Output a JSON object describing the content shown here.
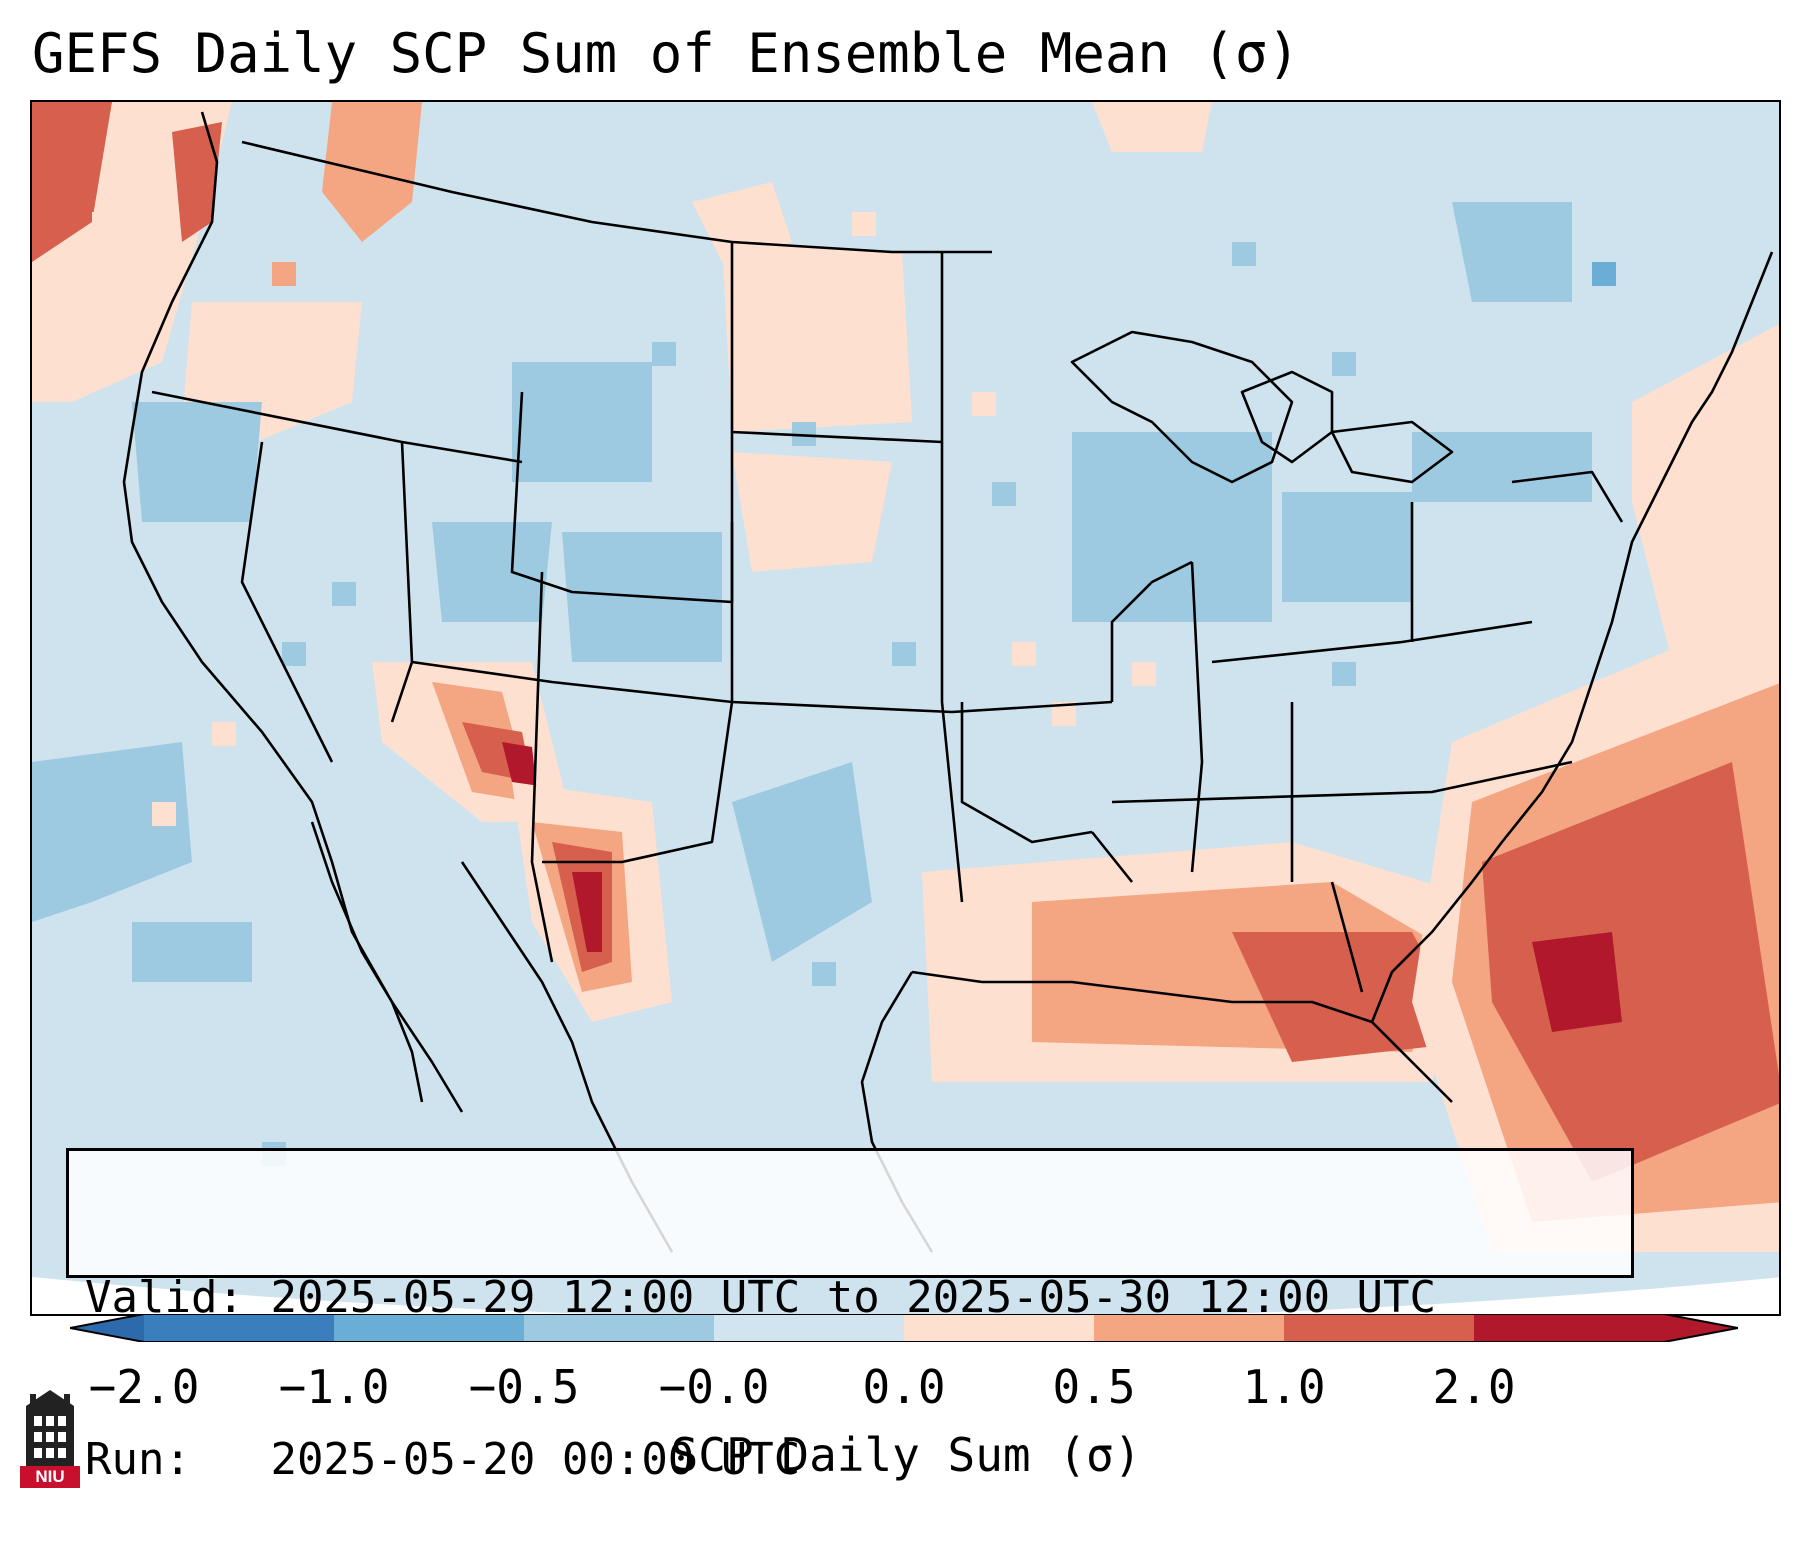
{
  "title": "GEFS Daily SCP Sum of Ensemble Mean (σ)",
  "info": {
    "valid_label": "Valid:",
    "valid_range": "2025-05-29 12:00 UTC to 2025-05-30 12:00 UTC",
    "run_label": "Run:",
    "run_time": "2025-05-20 00:00 UTC"
  },
  "colorbar": {
    "label": "SCP Daily Sum (σ)",
    "ticks": [
      "−2.0",
      "−1.0",
      "−0.5",
      "−0.0",
      "0.0",
      "0.5",
      "1.0",
      "2.0"
    ],
    "colors": [
      "#3a7ebd",
      "#6aaed6",
      "#9ecae1",
      "#d2e4f0",
      "#fde0d0",
      "#f4a582",
      "#d6604d",
      "#b2182b"
    ],
    "under_color": "#2c6aab",
    "over_color": "#b2182b"
  },
  "map": {
    "background_color": "#cfe3ef",
    "region": "Continental United States"
  },
  "logo": {
    "text": "NIU",
    "color": "#c8102e"
  }
}
